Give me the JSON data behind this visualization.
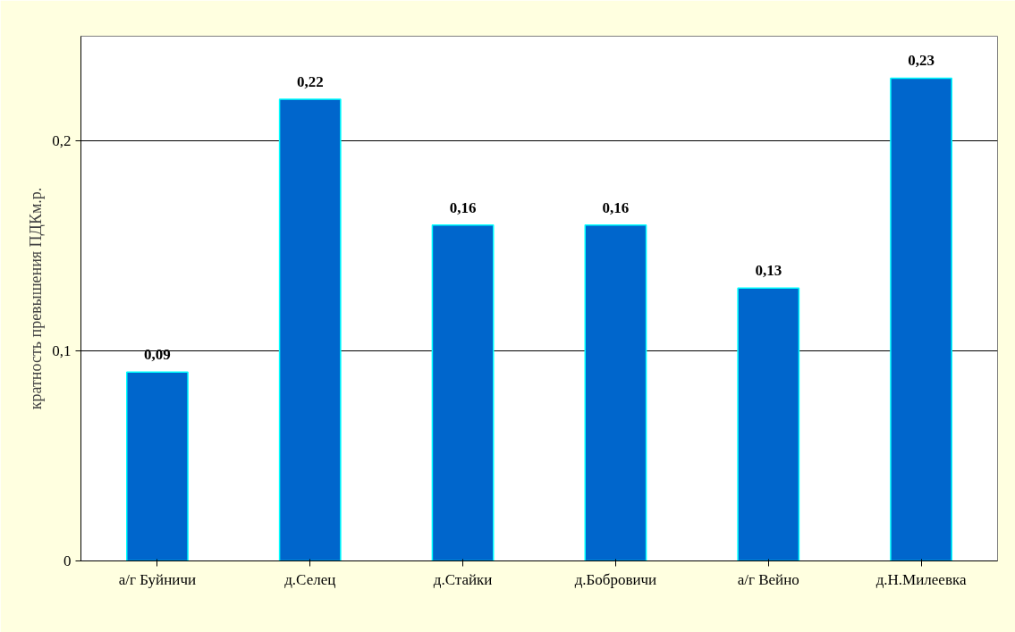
{
  "chart_data": {
    "type": "bar",
    "ylabel": "кратность превышения ПДКм.р.",
    "categories": [
      "а/г Буйничи",
      "д.Селец",
      "д.Стайки",
      "д.Бобровичи",
      "а/г Вейно",
      "д.Н.Милеевка"
    ],
    "values": [
      0.09,
      0.22,
      0.16,
      0.16,
      0.13,
      0.23
    ],
    "value_labels": [
      "0,09",
      "0,22",
      "0,16",
      "0,16",
      "0,13",
      "0,23"
    ],
    "color": "#0066cc",
    "ylim": [
      0,
      0.25
    ],
    "yticks": [
      {
        "value": 0,
        "label": "0"
      },
      {
        "value": 0.1,
        "label": "0,1"
      },
      {
        "value": 0.2,
        "label": "0,2"
      }
    ],
    "grid": "y"
  }
}
